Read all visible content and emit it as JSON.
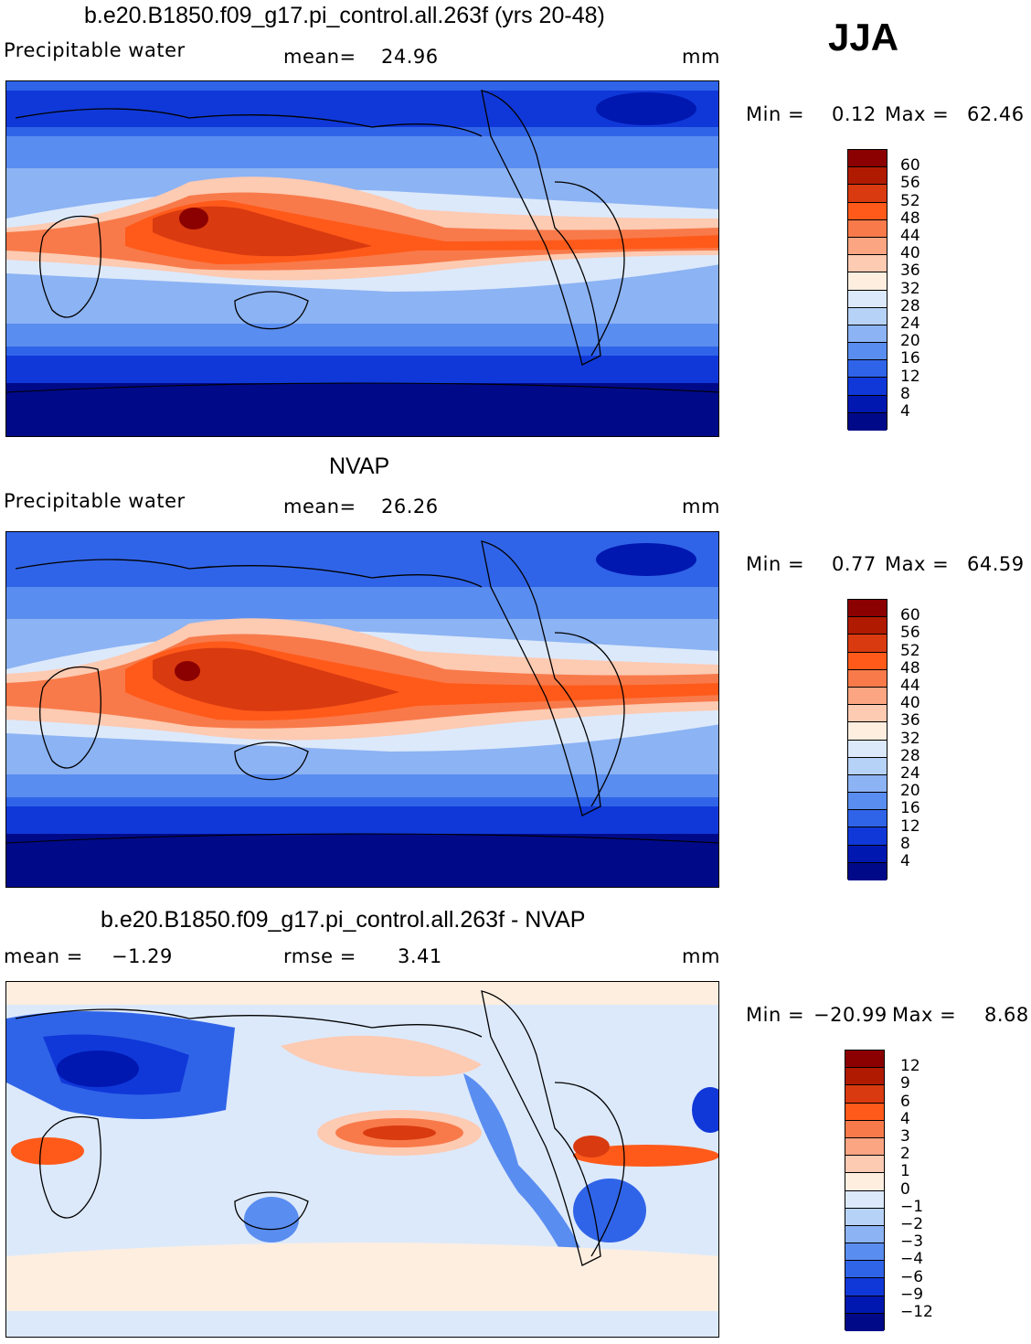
{
  "season": "JJA",
  "units": "mm",
  "panels": [
    {
      "title": "b.e20.B1850.f09_g17.pi_control.all.263f (yrs 20-48)",
      "left_label": "Precipitable water",
      "stat_label": "mean=",
      "stat_value": "24.96",
      "units": "mm",
      "min_label": "Min =",
      "min_value": "0.12",
      "max_label": "Max =",
      "max_value": "62.46"
    },
    {
      "title": "NVAP",
      "left_label": "Precipitable water",
      "stat_label": "mean=",
      "stat_value": "26.26",
      "units": "mm",
      "min_label": "Min =",
      "min_value": "0.77",
      "max_label": "Max =",
      "max_value": "64.59"
    },
    {
      "title": "b.e20.B1850.f09_g17.pi_control.all.263f - NVAP",
      "left_label": "mean =",
      "left_value": "−1.29",
      "stat_label": "rmse =",
      "stat_value": "3.41",
      "units": "mm",
      "min_label": "Min =",
      "min_value": "−20.99",
      "max_label": "Max =",
      "max_value": "8.68"
    }
  ],
  "colorbars": {
    "abs": {
      "levels": [
        "60",
        "56",
        "52",
        "48",
        "44",
        "40",
        "36",
        "32",
        "28",
        "24",
        "20",
        "16",
        "12",
        "8",
        "4"
      ],
      "colors": [
        "#8b0000",
        "#b01a00",
        "#d93a10",
        "#ff5a1a",
        "#f87a4a",
        "#fca582",
        "#fdcab2",
        "#fdeee0",
        "#dce9fb",
        "#b7d2f7",
        "#8cb3f3",
        "#5a8df0",
        "#3064e8",
        "#1038d8",
        "#0018b0",
        "#000a88"
      ]
    },
    "diff": {
      "levels": [
        "12",
        "9",
        "6",
        "4",
        "3",
        "2",
        "1",
        "0",
        "−1",
        "−2",
        "−3",
        "−4",
        "−6",
        "−9",
        "−12"
      ],
      "colors": [
        "#8b0000",
        "#b01a00",
        "#d93a10",
        "#ff5a1a",
        "#f87a4a",
        "#fca582",
        "#fdcab2",
        "#fdeee0",
        "#dce9fb",
        "#b7d2f7",
        "#8cb3f3",
        "#5a8df0",
        "#3064e8",
        "#1038d8",
        "#0018b0",
        "#000a88"
      ]
    }
  },
  "map_colors": {
    "polar": "#000a88",
    "high_lat": "#1038d8",
    "mid": "#3064e8",
    "sub": "#5a8df0",
    "light": "#8cb3f3",
    "pale": "#dce9fb",
    "warm1": "#fdcab2",
    "warm2": "#f87a4a",
    "warm3": "#ff5a1a",
    "warm4": "#d93a10",
    "max": "#8b0000",
    "diff_bg": "#dce9fb",
    "diff_pos": "#fdcab2"
  }
}
